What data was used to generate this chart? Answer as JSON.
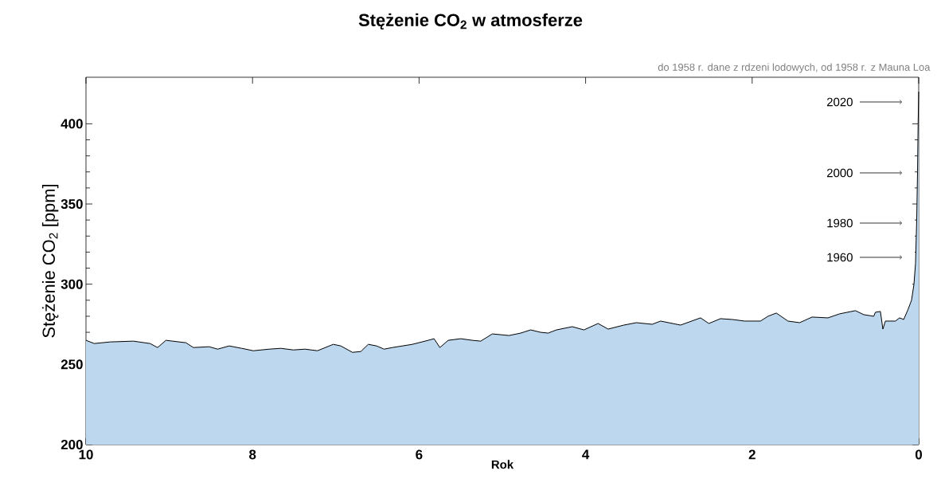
{
  "chart_data": {
    "type": "area",
    "title": "**Stężenie CO$_{2}$ w atmosferze**",
    "xlabel": "**Rok**",
    "ylabel": "Stężenie CO$_{2}$ [ppm]",
    "annotations": [
      "do 1958 r. dane z rdzeni lodowych, od 1958 r. z Mauna Loa",
      "2020",
      "2000",
      "1980",
      "1960"
    ],
    "xlim": [
      10,
      0
    ],
    "xticks": [
      10,
      8,
      6,
      4,
      2,
      0
    ],
    "ylim": [
      200,
      429
    ],
    "yticks": [
      200,
      250,
      300,
      350,
      400
    ],
    "grid": false,
    "series": [
      {
        "color": "#bcd7ee",
        "x": [
          10,
          9.9,
          9.71,
          9.43,
          9.23,
          9.14,
          9.04,
          8.8,
          8.71,
          8.52,
          8.42,
          8.28,
          8.13,
          7.99,
          7.8,
          7.66,
          7.51,
          7.37,
          7.22,
          7.03,
          6.94,
          6.8,
          6.7,
          6.61,
          6.51,
          6.42,
          6.32,
          6.08,
          5.89,
          5.82,
          5.75,
          5.65,
          5.5,
          5.36,
          5.26,
          5.12,
          4.92,
          4.78,
          4.66,
          4.54,
          4.45,
          4.35,
          4.16,
          4.02,
          3.85,
          3.73,
          3.54,
          3.39,
          3.2,
          3.1,
          2.86,
          2.62,
          2.52,
          2.38,
          2.24,
          2.09,
          1.9,
          1.81,
          1.71,
          1.57,
          1.43,
          1.28,
          1.09,
          0.95,
          0.76,
          0.66,
          0.54,
          0.52,
          0.46,
          0.43,
          0.4,
          0.28,
          0.23,
          0.18,
          0.13,
          0.086,
          0.057,
          0.038,
          0.024,
          0.014,
          0.007,
          0
        ],
        "values": [
          265,
          263,
          264,
          264.5,
          263,
          260.5,
          265,
          263.5,
          260.5,
          261,
          259.5,
          261.5,
          260,
          258.5,
          259.5,
          260,
          259,
          259.5,
          258.5,
          262.5,
          261.5,
          257.5,
          258,
          262.5,
          261.5,
          259.5,
          260.5,
          262.5,
          265,
          266,
          260.5,
          265,
          266,
          265,
          264.5,
          269,
          268,
          269.5,
          271.5,
          270,
          269.5,
          271.5,
          273.5,
          271.5,
          275.5,
          272,
          274.5,
          276,
          275,
          277,
          274.5,
          279,
          275.5,
          278.5,
          278,
          277,
          277,
          280,
          282,
          277,
          276,
          279.5,
          279,
          281.5,
          283.5,
          281,
          280,
          282.5,
          283,
          272,
          277,
          277,
          279,
          278,
          284,
          290,
          300,
          313,
          340,
          370,
          400,
          420
        ]
      }
    ]
  }
}
